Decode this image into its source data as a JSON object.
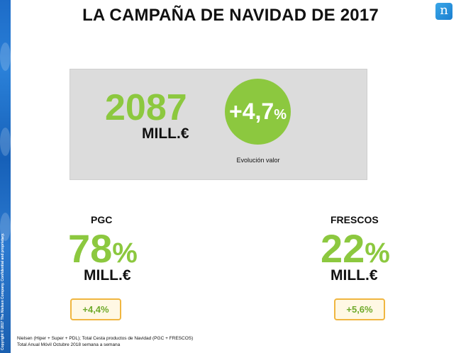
{
  "title": "LA CAMPAÑA DE NAVIDAD DE 2017",
  "copyright": "Copyright © 2017 The Nielsen Company. Confidential and proprietary.",
  "logo_letter": "n",
  "total": {
    "value": "2087",
    "unit": "MILL.€",
    "growth_main": "+4,7",
    "growth_pct_sign": "%",
    "growth_caption": "Evolución valor"
  },
  "segments": [
    {
      "label": "PGC",
      "share": "78",
      "pct_sign": "%",
      "unit": "MILL.€",
      "growth": "+4,4%"
    },
    {
      "label": "FRESCOS",
      "share": "22",
      "pct_sign": "%",
      "unit": "MILL.€",
      "growth": "+5,6%"
    }
  ],
  "footnotes": [
    "Nielsen (Hiper + Super + PDL); Total Cesta productos de Navidad (PGC + FRESCOS)",
    "Total Anual Móvil Octubre 2018 semana a semana"
  ],
  "colors": {
    "accent_green": "#8cc83f",
    "badge_border": "#f0b640",
    "side_blue": "#1d6cc8"
  }
}
